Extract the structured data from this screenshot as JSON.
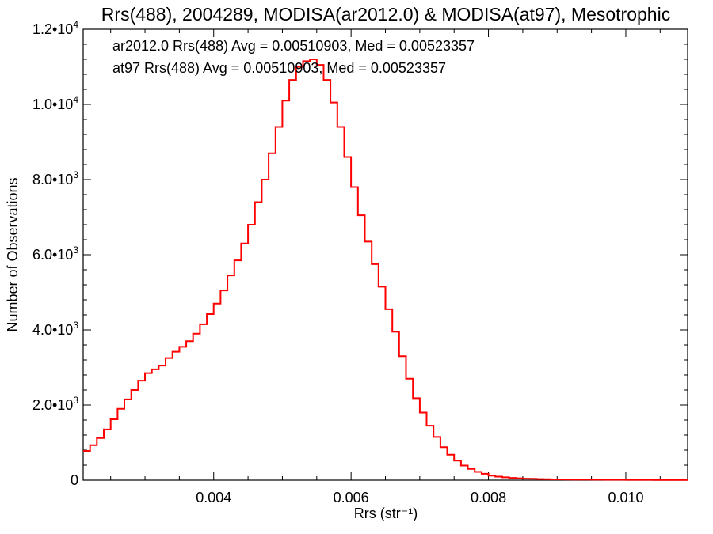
{
  "chart_data": {
    "type": "line",
    "title": "Rrs(488), 2004289, MODISA(ar2012.0) & MODISA(at97), Mesotrophic",
    "xlabel": "Rrs (str⁻¹)",
    "ylabel": "Number of Observations",
    "xlim": [
      0.0021,
      0.0109
    ],
    "ylim": [
      0,
      12000
    ],
    "xticks": [
      {
        "value": 0.004,
        "label": "0.004"
      },
      {
        "value": 0.006,
        "label": "0.006"
      },
      {
        "value": 0.008,
        "label": "0.008"
      },
      {
        "value": 0.01,
        "label": "0.010"
      }
    ],
    "yticks": [
      {
        "value": 0,
        "mantissa": "0",
        "exp": ""
      },
      {
        "value": 2000,
        "mantissa": "2.0•10",
        "exp": "3"
      },
      {
        "value": 4000,
        "mantissa": "4.0•10",
        "exp": "3"
      },
      {
        "value": 6000,
        "mantissa": "6.0•10",
        "exp": "3"
      },
      {
        "value": 8000,
        "mantissa": "8.0•10",
        "exp": "3"
      },
      {
        "value": 10000,
        "mantissa": "1.0•10",
        "exp": "4"
      },
      {
        "value": 12000,
        "mantissa": "1.2•10",
        "exp": "4"
      }
    ],
    "grid": false,
    "step": "histogram",
    "annotations": [
      {
        "text": "ar2012.0 Rrs(488) Avg = 0.00510903, Med = 0.00523357",
        "color": "#000000"
      },
      {
        "text": "at97 Rrs(488) Avg = 0.00510903, Med = 0.00523357",
        "color": "#ff0000"
      }
    ],
    "series": [
      {
        "color": "#ff0000",
        "x": [
          0.0021,
          0.0022,
          0.0023,
          0.0024,
          0.0025,
          0.0026,
          0.0027,
          0.0028,
          0.0029,
          0.003,
          0.0031,
          0.0032,
          0.0033,
          0.0034,
          0.0035,
          0.0036,
          0.0037,
          0.0038,
          0.0039,
          0.004,
          0.0041,
          0.0042,
          0.0043,
          0.0044,
          0.0045,
          0.0046,
          0.0047,
          0.0048,
          0.0049,
          0.005,
          0.0051,
          0.0052,
          0.0053,
          0.0054,
          0.0055,
          0.0056,
          0.0057,
          0.0058,
          0.0059,
          0.006,
          0.0061,
          0.0062,
          0.0063,
          0.0064,
          0.0065,
          0.0066,
          0.0067,
          0.0068,
          0.0069,
          0.007,
          0.0071,
          0.0072,
          0.0073,
          0.0074,
          0.0075,
          0.0076,
          0.0077,
          0.0078,
          0.0079,
          0.008,
          0.0081,
          0.0082,
          0.0083,
          0.0084,
          0.0085,
          0.0086,
          0.0087,
          0.0088,
          0.0089,
          0.009,
          0.0091,
          0.0092,
          0.0093,
          0.0094,
          0.0095,
          0.0096,
          0.0097,
          0.0098,
          0.0099,
          0.01,
          0.0101,
          0.0102,
          0.0103,
          0.0104,
          0.0105,
          0.0106,
          0.0107,
          0.0108
        ],
        "y": [
          780,
          930,
          1120,
          1350,
          1620,
          1900,
          2150,
          2400,
          2650,
          2850,
          2950,
          3050,
          3250,
          3420,
          3550,
          3700,
          3900,
          4150,
          4420,
          4700,
          5050,
          5450,
          5850,
          6300,
          6800,
          7400,
          8000,
          8700,
          9400,
          10100,
          10650,
          11000,
          11150,
          11200,
          11050,
          10650,
          10050,
          9400,
          8600,
          7800,
          7050,
          6350,
          5750,
          5150,
          4550,
          3950,
          3300,
          2700,
          2180,
          1800,
          1450,
          1150,
          880,
          680,
          520,
          390,
          300,
          220,
          170,
          120,
          95,
          75,
          60,
          50,
          40,
          35,
          30,
          25,
          22,
          20,
          18,
          16,
          15,
          14,
          13,
          12,
          11,
          10,
          10,
          9,
          9,
          8,
          8,
          7,
          7,
          6,
          6,
          5
        ]
      }
    ]
  }
}
